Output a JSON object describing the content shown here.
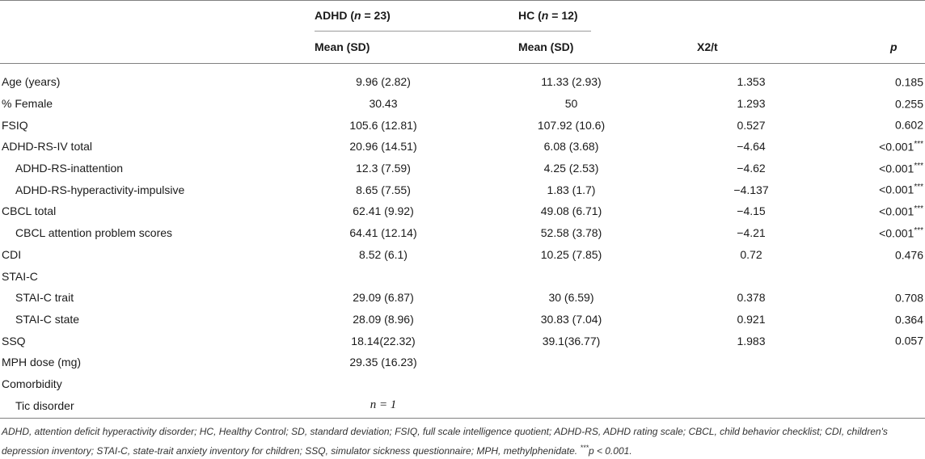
{
  "header": {
    "group1_name": "ADHD",
    "group1_n_label": "n",
    "group1_n_value": "= 23",
    "group2_name": "HC",
    "group2_n_label": "n",
    "group2_n_value": "= 12",
    "sub_col1": "Mean (SD)",
    "sub_col2": "Mean (SD)",
    "col_stat": "X2/t",
    "col_p": "p"
  },
  "rows": [
    {
      "label": "Age (years)",
      "indent": false,
      "adhd": "9.96 (2.82)",
      "hc": "11.33 (2.93)",
      "stat": "1.353",
      "p": "0.185",
      "sig": ""
    },
    {
      "label": "% Female",
      "indent": false,
      "adhd": "30.43",
      "hc": "50",
      "stat": "1.293",
      "p": "0.255",
      "sig": ""
    },
    {
      "label": "FSIQ",
      "indent": false,
      "adhd": "105.6 (12.81)",
      "hc": "107.92 (10.6)",
      "stat": "0.527",
      "p": "0.602",
      "sig": ""
    },
    {
      "label": "ADHD-RS-IV total",
      "indent": false,
      "adhd": "20.96 (14.51)",
      "hc": "6.08 (3.68)",
      "stat": "−4.64",
      "p": "<0.001",
      "sig": "***"
    },
    {
      "label": "ADHD-RS-inattention",
      "indent": true,
      "adhd": "12.3 (7.59)",
      "hc": "4.25 (2.53)",
      "stat": "−4.62",
      "p": "<0.001",
      "sig": "***"
    },
    {
      "label": "ADHD-RS-hyperactivity-impulsive",
      "indent": true,
      "adhd": "8.65 (7.55)",
      "hc": "1.83 (1.7)",
      "stat": "−4.137",
      "p": "<0.001",
      "sig": "***"
    },
    {
      "label": "CBCL total",
      "indent": false,
      "adhd": "62.41 (9.92)",
      "hc": "49.08 (6.71)",
      "stat": "−4.15",
      "p": "<0.001",
      "sig": "***"
    },
    {
      "label": "CBCL attention problem scores",
      "indent": true,
      "adhd": "64.41 (12.14)",
      "hc": "52.58 (3.78)",
      "stat": "−4.21",
      "p": "<0.001",
      "sig": "***"
    },
    {
      "label": "CDI",
      "indent": false,
      "adhd": "8.52 (6.1)",
      "hc": "10.25 (7.85)",
      "stat": "0.72",
      "p": "0.476",
      "sig": ""
    },
    {
      "label": "STAI-C",
      "indent": false,
      "adhd": "",
      "hc": "",
      "stat": "",
      "p": "",
      "sig": ""
    },
    {
      "label": "STAI-C trait",
      "indent": true,
      "adhd": "29.09 (6.87)",
      "hc": "30 (6.59)",
      "stat": "0.378",
      "p": "0.708",
      "sig": ""
    },
    {
      "label": "STAI-C state",
      "indent": true,
      "adhd": "28.09 (8.96)",
      "hc": "30.83 (7.04)",
      "stat": "0.921",
      "p": "0.364",
      "sig": ""
    },
    {
      "label": "SSQ",
      "indent": false,
      "adhd": "18.14(22.32)",
      "hc": "39.1(36.77)",
      "stat": "1.983",
      "p": "0.057",
      "sig": ""
    },
    {
      "label": "MPH dose (mg)",
      "indent": false,
      "adhd": "29.35 (16.23)",
      "hc": "",
      "stat": "",
      "p": "",
      "sig": ""
    },
    {
      "label": "Comorbidity",
      "indent": false,
      "adhd": "",
      "hc": "",
      "stat": "",
      "p": "",
      "sig": ""
    },
    {
      "label": "Tic disorder",
      "indent": true,
      "adhd": "n = 1",
      "hc": "",
      "stat": "",
      "p": "",
      "sig": "",
      "adhd_italic_n": true
    }
  ],
  "footnote": {
    "text": "ADHD, attention deficit hyperactivity disorder; HC, Healthy Control; SD, standard deviation; FSIQ, full scale intelligence quotient; ADHD-RS, ADHD rating scale; CBCL, child behavior checklist; CDI, children's depression inventory; STAI-C, state-trait anxiety inventory for children; SSQ, simulator sickness questionnaire; MPH, methylphenidate.",
    "sig_marker": "***",
    "sig_text": "p < 0.001."
  }
}
